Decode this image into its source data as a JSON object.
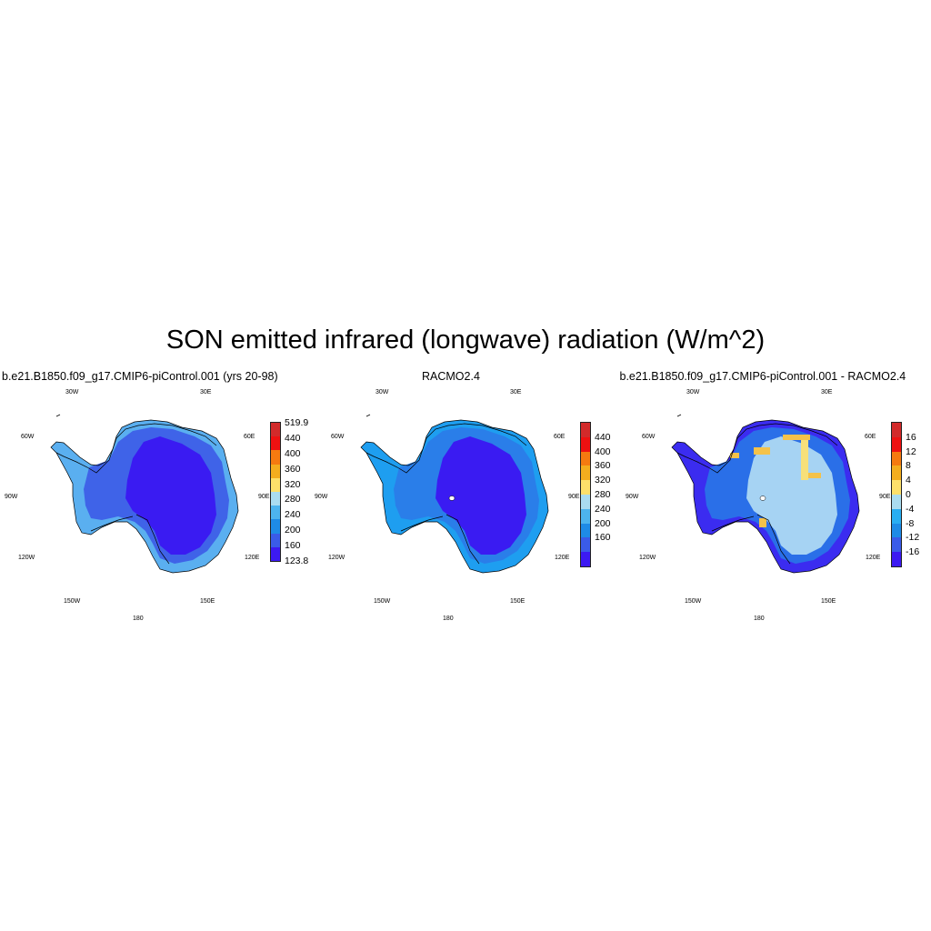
{
  "title": "SON emitted infrared (longwave) radiation (W/m^2)",
  "panels": [
    {
      "title": "b.e21.B1850.f09_g17.CMIP6-piControl.001 (yrs 20-98)",
      "lon_labels": [
        "30W",
        "30E",
        "60W",
        "60E",
        "90W",
        "90E",
        "120W",
        "120E",
        "150W",
        "150E",
        "180"
      ],
      "colorbar": {
        "labels": [
          "519.9",
          "440",
          "400",
          "360",
          "320",
          "280",
          "240",
          "200",
          "160",
          "123.8"
        ],
        "colors": [
          "#d22a2a",
          "#ee1111",
          "#f57a10",
          "#f4ad1e",
          "#fde06a",
          "#aadcf0",
          "#4db4ee",
          "#1e8be6",
          "#3a5be8",
          "#3c1af2"
        ]
      },
      "map": {
        "outer": "#5aaff0",
        "mid": "#3f63e8",
        "inner": "#3a1bf2"
      }
    },
    {
      "title": "RACMO2.4",
      "lon_labels": [
        "30W",
        "30E",
        "60W",
        "60E",
        "90W",
        "90E",
        "120W",
        "120E",
        "150W",
        "150E",
        "180"
      ],
      "colorbar": {
        "labels": [
          "440",
          "400",
          "360",
          "320",
          "280",
          "240",
          "200",
          "160"
        ],
        "colors": [
          "#d22a2a",
          "#ee1111",
          "#f57a10",
          "#f4ad1e",
          "#fde06a",
          "#aadcf0",
          "#4db4ee",
          "#1e8be6",
          "#3a5be8",
          "#3c1af2"
        ]
      },
      "map": {
        "outer": "#1e9ef0",
        "mid": "#2a7ee9",
        "inner": "#3a1bf2"
      }
    },
    {
      "title": "b.e21.B1850.f09_g17.CMIP6-piControl.001 - RACMO2.4",
      "lon_labels": [
        "30W",
        "30E",
        "60W",
        "60E",
        "90W",
        "90E",
        "120W",
        "120E",
        "150W",
        "150E",
        "180"
      ],
      "colorbar": {
        "labels": [
          "16",
          "12",
          "8",
          "4",
          "0",
          "-4",
          "-8",
          "-12",
          "-16"
        ],
        "colors": [
          "#d22a2a",
          "#ee1111",
          "#f57a10",
          "#f4ad1e",
          "#fde06a",
          "#aadcf0",
          "#29aef2",
          "#1e8be6",
          "#3a5be8",
          "#3c1af2"
        ]
      },
      "map": {
        "outer": "#3b2cf0",
        "mid": "#2a6fe8",
        "inner": "#a6d3f3",
        "warm": "#f4c24a"
      }
    }
  ]
}
